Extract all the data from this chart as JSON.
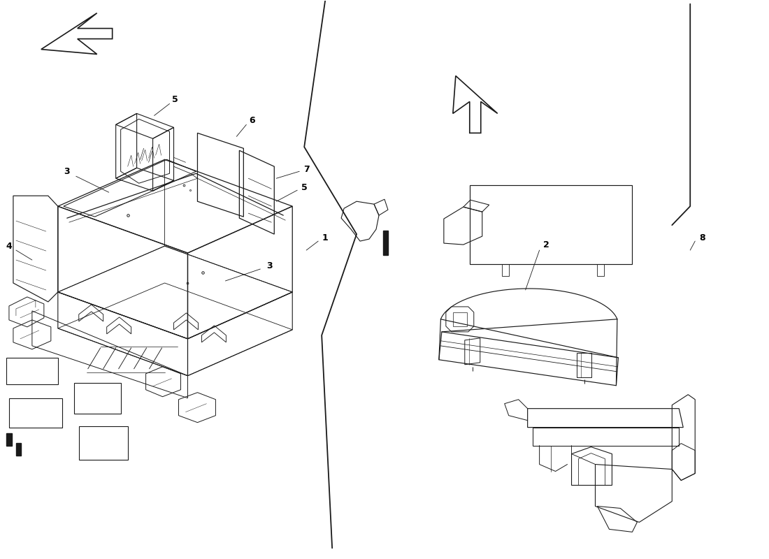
{
  "background_color": "#ffffff",
  "line_color": "#1a1a1a",
  "label_color": "#000000",
  "fig_width": 11.0,
  "fig_height": 8.0
}
